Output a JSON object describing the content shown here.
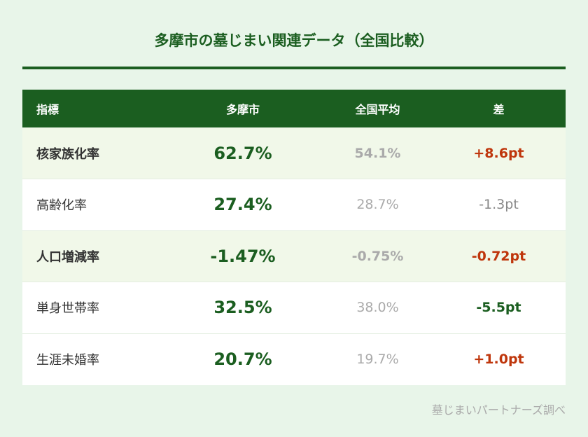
{
  "title": "多摩市の墓じまい関連データ（全国比較）",
  "headers": [
    "指標",
    "多摩市",
    "全国平均",
    "差"
  ],
  "rows": [
    {
      "label": "核家族化率",
      "local": "62.7%",
      "national": "54.1%",
      "diff": "+8.6pt",
      "diff_tone": "red",
      "highlight": true
    },
    {
      "label": "高齢化率",
      "local": "27.4%",
      "national": "28.7%",
      "diff": "-1.3pt",
      "diff_tone": "gray",
      "highlight": false
    },
    {
      "label": "人口増減率",
      "local": "-1.47%",
      "national": "-0.75%",
      "diff": "-0.72pt",
      "diff_tone": "red",
      "highlight": true
    },
    {
      "label": "単身世帯率",
      "local": "32.5%",
      "national": "38.0%",
      "diff": "-5.5pt",
      "diff_tone": "green",
      "highlight": false
    },
    {
      "label": "生涯未婚率",
      "local": "20.7%",
      "national": "19.7%",
      "diff": "+1.0pt",
      "diff_tone": "red",
      "highlight": false
    }
  ],
  "colors": {
    "header": "#1b5e20",
    "red": "#bf360c",
    "green": "#1b5e20",
    "gray": "#888888",
    "background": "#e8f5e9"
  },
  "source": "墓じまいパートナーズ調べ"
}
